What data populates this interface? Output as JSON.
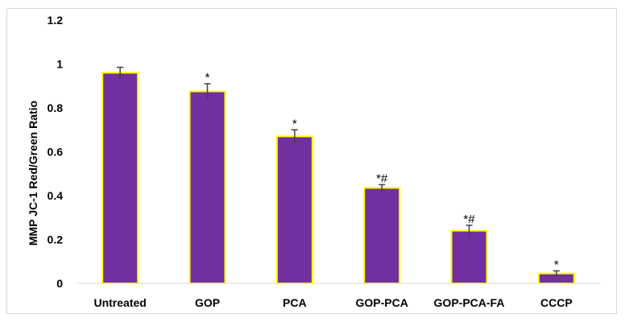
{
  "chart_data": {
    "type": "bar",
    "title": "",
    "xlabel": "",
    "ylabel": "MMP JC-1 Red/Green Ratio",
    "ylim": [
      0,
      1.2
    ],
    "yticks": [
      "0",
      "0.2",
      "0.4",
      "0.6",
      "0.8",
      "1",
      "1.2"
    ],
    "ytick_values": [
      0,
      0.2,
      0.4,
      0.6,
      0.8,
      1.0,
      1.2
    ],
    "grid": false,
    "legend": "none",
    "categories": [
      "Untreated",
      "GOP",
      "PCA",
      "GOP-PCA",
      "GOP-PCA-FA",
      "CCCP"
    ],
    "values": [
      0.96,
      0.875,
      0.67,
      0.435,
      0.24,
      0.045
    ],
    "errors": [
      0.025,
      0.035,
      0.03,
      0.015,
      0.025,
      0.012
    ],
    "significance": [
      "",
      "*",
      "*",
      "*#",
      "*#",
      "*"
    ],
    "colors": {
      "bar_fill": "#7030a0",
      "bar_edge": "#ffff00",
      "error_bar": "#404040",
      "frame": "#d9d9d9"
    }
  }
}
